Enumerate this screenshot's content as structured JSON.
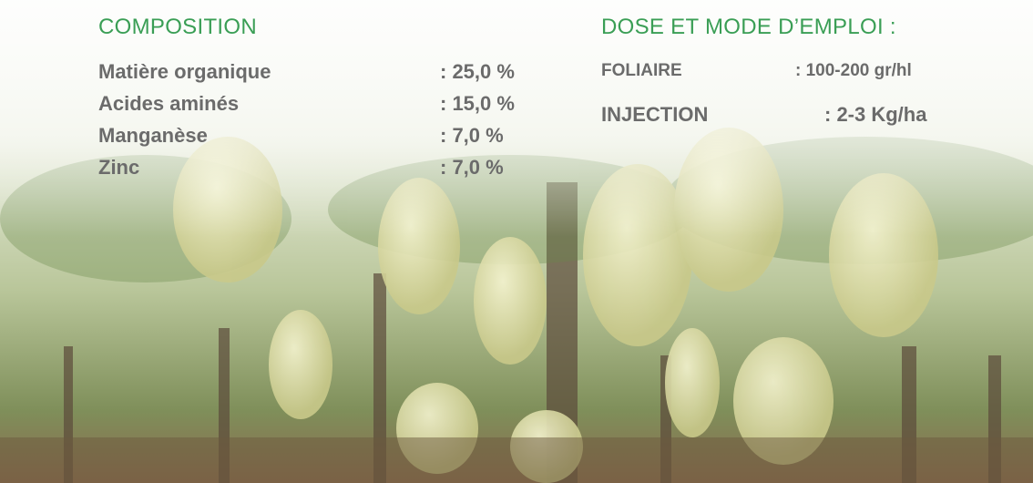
{
  "composition": {
    "title": "COMPOSITION",
    "rows": [
      {
        "name": "Matière organique",
        "value": ": 25,0 %"
      },
      {
        "name": "Acides aminés",
        "value": ": 15,0 %"
      },
      {
        "name": "Manganèse",
        "value": ": 7,0 %"
      },
      {
        "name": "Zinc",
        "value": ": 7,0 %"
      }
    ]
  },
  "dose": {
    "title": "DOSE ET MODE D’EMPLOI :",
    "rows": [
      {
        "name": "FOLIAIRE",
        "value": ": 100-200 gr/hl"
      },
      {
        "name": "INJECTION",
        "value": ": 2-3 Kg/ha"
      }
    ]
  }
}
